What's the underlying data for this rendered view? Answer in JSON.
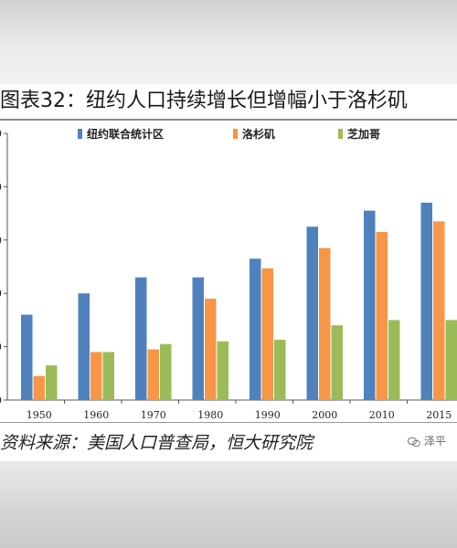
{
  "title": "图表32：纽约人口持续增长但增幅小于洛杉矶",
  "source": "资料来源：美国人口普查局，恒大研究院",
  "watermark": "泽平",
  "chart_data": {
    "type": "bar",
    "categories": [
      "1950",
      "1960",
      "1970",
      "1980",
      "1990",
      "2000",
      "2010",
      "2015"
    ],
    "series": [
      {
        "name": "纽约联合统计区",
        "color": "#4f81bd",
        "values": [
          1.6,
          2.0,
          2.3,
          2.3,
          2.65,
          3.25,
          3.55,
          3.7
        ]
      },
      {
        "name": "洛杉矶",
        "color": "#f79646",
        "values": [
          0.45,
          0.9,
          0.95,
          1.9,
          2.47,
          2.85,
          3.15,
          3.35
        ]
      },
      {
        "name": "芝加哥",
        "color": "#9bbb59",
        "values": [
          0.65,
          0.9,
          1.05,
          1.1,
          1.13,
          1.4,
          1.5,
          1.5
        ]
      }
    ],
    "ylim": [
      0,
      5
    ],
    "y_ticks": [
      "0",
      "0",
      "0",
      "0",
      "0",
      "0"
    ],
    "grid": false,
    "legend_position": "top"
  }
}
